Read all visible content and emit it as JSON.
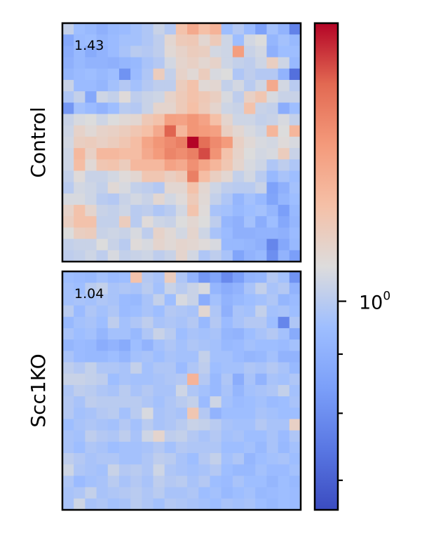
{
  "chart_data": {
    "type": "heatmap",
    "colormap": "coolwarm",
    "colorbar": {
      "scale": "log",
      "major_tick_label": {
        "base": "10",
        "exponent": "0"
      },
      "major_tick_value": 1.0,
      "minor_tick_values": [
        0.9,
        0.8,
        0.7
      ],
      "range": [
        0.66,
        1.74
      ]
    },
    "panels": [
      {
        "ylabel": "Control",
        "score_label": "1.43",
        "rows": 21,
        "cols": 21,
        "values": [
          [
            1.02,
            0.95,
            0.93,
            0.9,
            0.93,
            0.94,
            0.96,
            0.98,
            1.03,
            0.99,
            1.2,
            1.3,
            1.21,
            1.26,
            0.95,
            0.99,
            0.94,
            0.85,
            0.96,
            0.91,
            0.77
          ],
          [
            0.87,
            0.94,
            0.95,
            0.92,
            0.94,
            0.96,
            0.96,
            0.98,
            1.01,
            1.1,
            1.16,
            1.17,
            1.1,
            1.16,
            1.04,
            0.95,
            1.05,
            1.07,
            0.92,
            0.96,
            0.93
          ],
          [
            0.89,
            0.93,
            0.88,
            0.91,
            0.94,
            0.97,
            1.0,
            0.99,
            1.01,
            1.09,
            1.12,
            1.15,
            1.14,
            1.05,
            1.04,
            1.35,
            1.03,
            1.05,
            0.9,
            0.95,
            0.95
          ],
          [
            0.9,
            0.93,
            0.91,
            0.91,
            0.9,
            0.92,
            0.93,
            0.97,
            0.99,
            1.05,
            1.11,
            1.13,
            1.1,
            1.12,
            1.04,
            1.02,
            1.01,
            1.04,
            1.14,
            1.04,
            0.93
          ],
          [
            0.92,
            0.94,
            0.95,
            0.93,
            0.95,
            0.81,
            0.94,
            0.98,
            1.15,
            1.02,
            1.12,
            1.09,
            1.15,
            1.06,
            1.07,
            0.98,
            1.01,
            0.99,
            0.99,
            0.91,
            0.73
          ],
          [
            1.03,
            0.94,
            0.94,
            0.92,
            0.96,
            0.99,
            0.96,
            0.99,
            1.01,
            1.01,
            1.15,
            1.2,
            1.09,
            1.1,
            1.02,
            1.05,
            1.0,
            1.04,
            1.3,
            1.05,
            1.0
          ],
          [
            0.98,
            1.02,
            0.87,
            1.04,
            1.02,
            1.08,
            1.01,
            1.03,
            1.04,
            1.12,
            1.16,
            1.2,
            1.17,
            1.14,
            1.06,
            1.01,
            1.13,
            1.18,
            1.06,
            1.03,
            1.03
          ],
          [
            0.82,
            0.96,
            0.94,
            0.91,
            0.95,
            1.0,
            0.99,
            1.03,
            1.11,
            1.11,
            1.16,
            1.21,
            1.16,
            1.11,
            1.04,
            1.03,
            1.2,
            1.03,
            1.02,
            0.89,
            0.95
          ],
          [
            1.03,
            1.06,
            1.07,
            1.04,
            1.07,
            1.09,
            1.1,
            1.17,
            1.2,
            1.34,
            1.33,
            1.38,
            1.33,
            1.21,
            1.11,
            1.04,
            1.04,
            1.02,
            1.03,
            1.06,
            1.02
          ],
          [
            1.04,
            1.12,
            1.09,
            1.12,
            1.13,
            1.15,
            1.18,
            1.21,
            1.3,
            1.55,
            1.25,
            1.38,
            1.36,
            1.34,
            1.14,
            1.1,
            1.06,
            1.04,
            1.25,
            1.07,
            1.25
          ],
          [
            1.05,
            1.14,
            1.15,
            1.13,
            1.15,
            1.18,
            1.22,
            1.32,
            1.38,
            1.42,
            1.46,
            1.74,
            1.52,
            1.42,
            1.36,
            1.13,
            1.09,
            1.06,
            1.05,
            1.08,
            1.06
          ],
          [
            1.04,
            1.24,
            1.13,
            1.24,
            1.24,
            1.22,
            1.22,
            1.3,
            1.36,
            1.44,
            1.41,
            1.46,
            1.6,
            1.39,
            1.2,
            1.12,
            1.07,
            1.05,
            1.06,
            1.15,
            1.03
          ],
          [
            1.04,
            1.22,
            1.09,
            1.18,
            1.19,
            1.15,
            1.24,
            1.24,
            1.24,
            1.33,
            1.3,
            1.4,
            1.32,
            1.25,
            1.18,
            1.11,
            1.06,
            1.04,
            0.98,
            1.01,
            0.98
          ],
          [
            1.02,
            1.08,
            1.03,
            1.03,
            1.05,
            1.08,
            1.1,
            1.18,
            1.18,
            1.14,
            1.17,
            1.46,
            1.22,
            1.14,
            1.1,
            1.02,
            1.05,
            1.0,
            0.93,
            0.97,
            0.95
          ],
          [
            1.0,
            1.05,
            1.04,
            1.02,
            1.09,
            1.06,
            1.02,
            1.01,
            0.99,
            1.1,
            1.1,
            1.2,
            1.1,
            1.04,
            1.01,
            1.0,
            1.0,
            1.03,
            0.85,
            0.9,
            0.96
          ],
          [
            1.06,
            1.06,
            1.04,
            1.0,
            0.99,
            1.03,
            1.05,
            1.03,
            1.1,
            1.05,
            1.08,
            1.16,
            1.09,
            1.02,
            0.98,
            0.92,
            0.96,
            0.93,
            0.86,
            0.92,
            0.95
          ],
          [
            1.12,
            1.2,
            1.11,
            1.03,
            1.02,
            1.04,
            1.0,
            1.01,
            0.98,
            1.0,
            1.05,
            1.19,
            1.08,
            0.97,
            0.96,
            0.93,
            0.95,
            0.96,
            0.92,
            0.84,
            0.93
          ],
          [
            1.14,
            1.2,
            1.2,
            1.02,
            1.02,
            1.15,
            1.0,
            1.08,
            1.04,
            1.03,
            1.07,
            1.1,
            1.07,
            1.01,
            0.92,
            0.9,
            0.96,
            0.89,
            0.95,
            0.87,
            0.92
          ],
          [
            1.07,
            1.14,
            1.15,
            1.03,
            1.04,
            1.03,
            1.06,
            1.01,
            1.12,
            1.09,
            1.05,
            1.11,
            1.04,
            0.97,
            0.94,
            0.9,
            0.9,
            0.91,
            0.91,
            0.9,
            0.94
          ],
          [
            1.02,
            1.03,
            1.03,
            1.07,
            1.03,
            1.0,
            1.08,
            1.06,
            1.11,
            1.09,
            1.11,
            1.1,
            1.08,
            1.06,
            0.93,
            0.93,
            0.92,
            0.9,
            0.78,
            0.87,
            0.93
          ],
          [
            1.01,
            1.02,
            1.04,
            1.01,
            1.06,
            1.02,
            1.03,
            1.04,
            1.01,
            1.03,
            1.11,
            1.05,
            0.98,
            1.01,
            0.97,
            0.86,
            0.91,
            0.93,
            0.8,
            0.91,
            0.84
          ]
        ]
      },
      {
        "ylabel": "Scc1KO",
        "score_label": "1.04",
        "rows": 21,
        "cols": 21,
        "values": [
          [
            0.95,
            0.94,
            0.93,
            0.96,
            0.94,
            0.95,
            1.2,
            0.99,
            0.97,
            1.15,
            0.98,
            0.91,
            0.82,
            0.86,
            0.79,
            0.84,
            0.91,
            0.92,
            0.99,
            0.96,
            0.81
          ],
          [
            0.96,
            0.95,
            1.0,
            1.02,
            0.97,
            0.98,
            0.97,
            1.0,
            0.96,
            1.03,
            1.0,
            1.03,
            1.06,
            0.92,
            0.89,
            0.91,
            0.97,
            1.02,
            0.97,
            0.99,
            0.91
          ],
          [
            0.96,
            0.97,
            0.96,
            0.98,
            0.97,
            0.94,
            0.93,
            0.97,
            1.02,
            0.95,
            1.06,
            1.03,
            0.89,
            0.96,
            0.91,
            0.93,
            0.95,
            0.96,
            0.98,
            0.92,
            0.94
          ],
          [
            1.0,
            0.94,
            0.98,
            0.96,
            0.98,
            0.94,
            0.95,
            0.97,
            0.95,
            0.99,
            0.98,
            0.97,
            1.1,
            0.98,
            0.9,
            0.97,
            0.96,
            1.02,
            0.96,
            0.97,
            0.95
          ],
          [
            0.93,
            0.96,
            0.97,
            0.95,
            1.01,
            0.96,
            0.98,
            1.01,
            0.97,
            0.98,
            0.97,
            0.99,
            0.93,
            0.99,
            0.94,
            0.97,
            0.99,
            0.99,
            0.95,
            0.78,
            0.98
          ],
          [
            0.97,
            0.95,
            0.96,
            0.92,
            0.96,
            0.96,
            0.93,
            0.98,
            1.03,
            1.0,
            0.95,
            0.97,
            0.96,
            0.97,
            0.92,
            0.91,
            0.95,
            0.97,
            0.99,
            0.96,
            0.88
          ],
          [
            0.92,
            0.94,
            0.93,
            0.89,
            0.91,
            0.88,
            0.95,
            0.91,
            0.96,
            0.98,
            0.96,
            0.98,
            0.97,
            0.96,
            0.93,
            0.94,
            0.96,
            0.95,
            0.95,
            0.94,
            0.96
          ],
          [
            0.97,
            0.94,
            0.93,
            0.93,
            0.95,
            0.92,
            0.96,
            0.97,
            0.95,
            0.97,
            0.96,
            0.96,
            1.02,
            0.96,
            0.96,
            0.94,
            0.92,
            0.93,
            0.96,
            0.91,
            0.91
          ],
          [
            1.01,
            0.99,
            1.02,
            0.98,
            0.98,
            0.97,
            1.02,
            0.96,
            0.98,
            0.98,
            0.94,
            0.98,
            1.01,
            0.95,
            0.96,
            0.96,
            0.98,
            0.97,
            0.99,
            0.97,
            0.93
          ],
          [
            1.03,
            1.03,
            1.02,
            1.01,
            0.95,
            0.97,
            0.96,
            0.96,
            0.97,
            0.98,
            0.99,
            1.26,
            0.99,
            0.93,
            0.98,
            0.89,
            0.97,
            0.91,
            0.97,
            0.96,
            0.98
          ],
          [
            0.98,
            1.01,
            1.0,
            0.98,
            0.97,
            1.0,
            0.97,
            0.99,
            0.97,
            0.97,
            1.04,
            0.98,
            0.96,
            0.93,
            0.97,
            0.92,
            0.96,
            0.97,
            0.98,
            1.02,
            0.96
          ],
          [
            0.99,
            0.97,
            1.01,
            1.0,
            1.0,
            1.0,
            1.0,
            0.98,
            0.96,
            0.98,
            1.0,
            1.02,
            0.94,
            1.04,
            0.96,
            0.94,
            0.95,
            0.96,
            0.94,
            0.95,
            0.97
          ],
          [
            0.99,
            0.96,
            0.97,
            0.99,
            1.0,
            0.96,
            1.0,
            1.06,
            0.97,
            0.98,
            0.97,
            1.18,
            0.99,
            0.91,
            0.95,
            0.95,
            0.95,
            0.97,
            0.96,
            0.95,
            0.95
          ],
          [
            0.95,
            0.97,
            0.98,
            0.97,
            0.96,
            0.99,
            0.96,
            1.0,
            0.97,
            0.98,
            1.0,
            1.03,
            1.02,
            1.0,
            0.97,
            0.96,
            0.96,
            0.99,
            0.97,
            0.97,
            1.13
          ],
          [
            0.97,
            0.96,
            1.01,
            0.99,
            0.98,
            1.01,
            0.97,
            1.04,
            1.11,
            1.01,
            1.02,
            0.99,
            0.97,
            0.99,
            0.96,
            0.97,
            0.95,
            0.95,
            0.97,
            0.94,
            0.98
          ],
          [
            0.97,
            0.95,
            0.98,
            0.97,
            0.95,
            0.96,
            0.96,
            0.97,
            0.99,
            0.96,
            0.99,
            0.98,
            0.98,
            0.98,
            0.95,
            0.95,
            0.96,
            0.93,
            0.97,
            0.93,
            0.96
          ],
          [
            1.01,
            0.99,
            0.97,
            0.98,
            0.98,
            0.96,
            0.96,
            0.98,
            1.01,
            1.0,
            0.97,
            0.95,
            0.99,
            1.02,
            0.96,
            0.98,
            0.92,
            0.95,
            0.96,
            0.97,
            0.95
          ],
          [
            1.04,
            0.98,
            0.97,
            0.96,
            1.03,
            0.99,
            1.0,
            0.98,
            1.04,
            0.98,
            0.97,
            0.96,
            0.97,
            0.99,
            0.95,
            0.93,
            0.93,
            0.96,
            0.94,
            0.94,
            0.96
          ],
          [
            0.98,
            0.94,
            0.96,
            0.97,
            1.0,
            0.97,
            0.99,
            0.97,
            1.01,
            0.99,
            1.0,
            0.97,
            0.99,
            0.95,
            0.94,
            0.97,
            0.95,
            0.95,
            0.92,
            0.95,
            0.93
          ],
          [
            0.97,
            0.98,
            1.02,
            0.97,
            0.98,
            0.99,
            1.0,
            0.98,
            1.0,
            0.97,
            0.97,
            0.98,
            0.95,
            0.96,
            0.93,
            0.95,
            0.96,
            0.93,
            0.94,
            0.95,
            0.94
          ],
          [
            0.97,
            1.04,
            0.97,
            0.98,
            0.96,
            0.97,
            1.0,
            0.98,
            0.96,
            0.99,
            0.98,
            0.97,
            0.96,
            0.95,
            0.97,
            0.96,
            0.97,
            0.95,
            0.93,
            0.95,
            0.94
          ]
        ]
      }
    ]
  }
}
